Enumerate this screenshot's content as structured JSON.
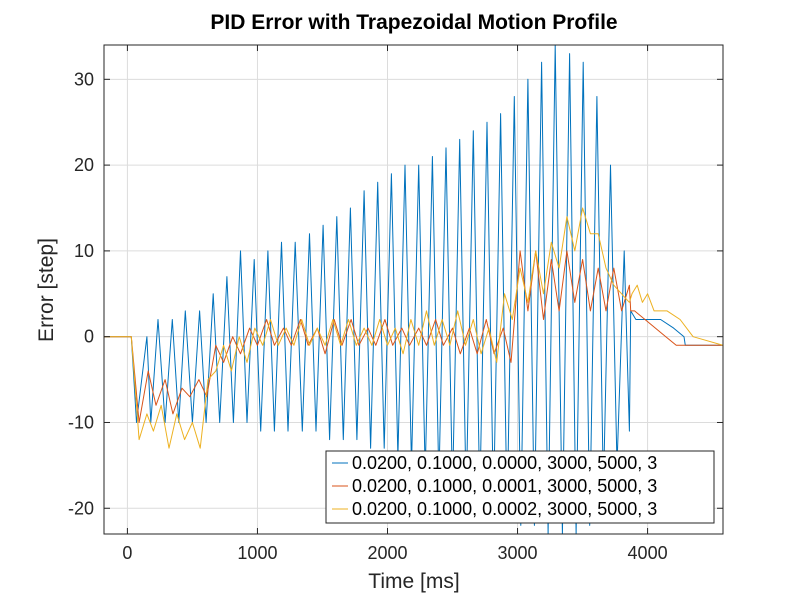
{
  "chart_data": {
    "type": "line",
    "title": "PID Error with Trapezoidal Motion Profile",
    "xlabel": "Time [ms]",
    "ylabel": "Error [step]",
    "xlim": [
      -180,
      4580
    ],
    "ylim": [
      -23,
      34
    ],
    "xticks": [
      0,
      1000,
      2000,
      3000,
      4000
    ],
    "yticks": [
      -20,
      -10,
      0,
      10,
      20,
      30
    ],
    "grid": true,
    "legend_position": "bottom-right",
    "colors": {
      "grid": "#dcdcdc",
      "axis": "#262626",
      "legend_border": "#262626"
    },
    "series": [
      {
        "name": "0.0200, 0.1000, 0.0000, 3000, 5000, 3",
        "color": "#0072BD",
        "x": [
          -200,
          0,
          30,
          70,
          150,
          180,
          235,
          290,
          345,
          395,
          445,
          500,
          555,
          605,
          660,
          710,
          765,
          815,
          870,
          920,
          975,
          1025,
          1080,
          1130,
          1185,
          1235,
          1290,
          1345,
          1400,
          1450,
          1505,
          1555,
          1610,
          1660,
          1715,
          1765,
          1820,
          1870,
          1925,
          1975,
          2030,
          2080,
          2135,
          2185,
          2240,
          2290,
          2345,
          2395,
          2450,
          2500,
          2555,
          2605,
          2660,
          2710,
          2765,
          2815,
          2870,
          2920,
          2975,
          3025,
          3080,
          3130,
          3185,
          3235,
          3290,
          3345,
          3400,
          3450,
          3505,
          3555,
          3610,
          3660,
          3715,
          3765,
          3820,
          3860,
          3870,
          3910,
          4000,
          4100,
          4200,
          4280,
          4290,
          4350,
          4580
        ],
        "y": [
          0,
          0,
          0,
          -10,
          0,
          -10,
          2,
          -10,
          2,
          -10,
          3,
          -10,
          3,
          -10,
          5,
          -10,
          7,
          -10,
          10,
          -10,
          9,
          -11,
          10,
          -11,
          11,
          -11,
          11,
          -11,
          12,
          -11,
          13,
          -12,
          14,
          -12,
          15,
          -12,
          17,
          -13,
          18,
          -13,
          19,
          -14,
          20,
          -15,
          20,
          -16,
          21,
          -17,
          22,
          -18,
          23,
          -19,
          24,
          -19,
          25,
          -20,
          26,
          -21,
          28,
          -22,
          30,
          -22,
          32,
          -23,
          34,
          -23,
          33,
          -23,
          32,
          -22,
          28,
          -18,
          20,
          -15,
          10,
          -11,
          3,
          2,
          2,
          2,
          1,
          0,
          -1,
          -1,
          -1
        ]
      },
      {
        "name": "0.0200, 0.1000, 0.0001, 3000, 5000, 3",
        "color": "#D95319",
        "x": [
          -200,
          0,
          30,
          90,
          160,
          220,
          290,
          350,
          420,
          480,
          550,
          610,
          680,
          740,
          810,
          870,
          940,
          1000,
          1070,
          1130,
          1200,
          1260,
          1330,
          1390,
          1460,
          1520,
          1590,
          1650,
          1720,
          1780,
          1850,
          1910,
          1980,
          2040,
          2110,
          2170,
          2240,
          2300,
          2370,
          2430,
          2500,
          2560,
          2630,
          2690,
          2760,
          2820,
          2890,
          2950,
          3020,
          3080,
          3140,
          3200,
          3260,
          3320,
          3380,
          3440,
          3500,
          3560,
          3620,
          3680,
          3740,
          3800,
          3860,
          3870,
          3900,
          3980,
          4060,
          4140,
          4220,
          4300,
          4580
        ],
        "y": [
          0,
          0,
          0,
          -10,
          -4,
          -8,
          -5,
          -9,
          -6,
          -7,
          -5,
          -7,
          -1,
          -3,
          0,
          -2,
          1,
          -1,
          2,
          -1,
          1,
          -1,
          2,
          -1,
          1,
          -2,
          2,
          -1,
          2,
          -1,
          1,
          -1,
          2,
          -1,
          1,
          -1,
          1,
          -1,
          2,
          -1,
          1,
          -2,
          1,
          -2,
          2,
          -2,
          1,
          -3,
          10,
          3,
          10,
          2,
          9,
          3,
          10,
          4,
          9,
          3,
          8,
          3,
          8,
          3,
          6,
          3,
          3,
          2,
          1,
          0,
          -1,
          -1,
          -1
        ]
      },
      {
        "name": "0.0200, 0.1000, 0.0002, 3000, 5000, 3",
        "color": "#EDB120",
        "x": [
          -200,
          0,
          30,
          90,
          150,
          200,
          260,
          320,
          380,
          440,
          500,
          560,
          620,
          680,
          740,
          800,
          860,
          920,
          980,
          1040,
          1100,
          1160,
          1220,
          1280,
          1340,
          1400,
          1460,
          1520,
          1580,
          1640,
          1700,
          1760,
          1820,
          1880,
          1940,
          2000,
          2060,
          2120,
          2180,
          2240,
          2300,
          2360,
          2420,
          2480,
          2540,
          2600,
          2660,
          2720,
          2780,
          2840,
          2900,
          2960,
          3020,
          3080,
          3140,
          3200,
          3260,
          3320,
          3380,
          3440,
          3500,
          3560,
          3620,
          3680,
          3740,
          3800,
          3860,
          3880,
          3920,
          3960,
          4000,
          4050,
          4150,
          4250,
          4350,
          4580
        ],
        "y": [
          0,
          0,
          0,
          -12,
          -9,
          -11,
          -8,
          -13,
          -9,
          -12,
          -10,
          -13,
          -5,
          -4,
          -1,
          -4,
          0,
          -3,
          1,
          -1,
          2,
          -1,
          1,
          -1,
          2,
          -1,
          1,
          -1,
          2,
          -1,
          2,
          -1,
          1,
          -1,
          2,
          -1,
          1,
          -2,
          2,
          -1,
          3,
          -1,
          2,
          -1,
          3,
          -1,
          2,
          -2,
          1,
          -3,
          5,
          2,
          8,
          4,
          10,
          5,
          11,
          8,
          14,
          10,
          15,
          12,
          12,
          8,
          6,
          5,
          4,
          5,
          6,
          4,
          5,
          3,
          3,
          2,
          0,
          -1
        ]
      }
    ]
  }
}
